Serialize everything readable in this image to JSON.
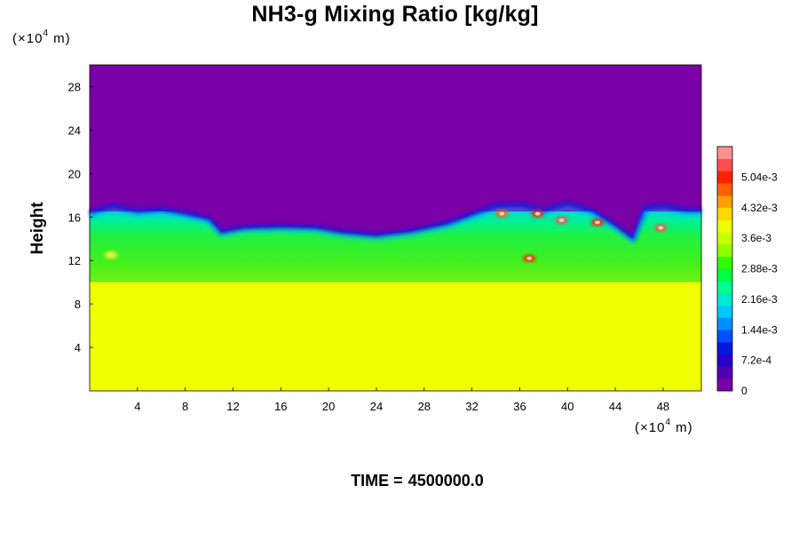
{
  "chart_data": {
    "type": "heatmap",
    "title": "NH3-g Mixing Ratio [kg/kg]",
    "ylabel": "Height",
    "x_unit_label": "(×10",
    "x_unit_exp": "4",
    "x_unit_suffix": " m)",
    "y_unit_label": "(×10",
    "y_unit_exp": "4",
    "y_unit_suffix": " m)",
    "xlim": [
      0,
      51.2
    ],
    "ylim": [
      0,
      30
    ],
    "x_ticks": [
      "4",
      "8",
      "12",
      "16",
      "20",
      "24",
      "28",
      "32",
      "36",
      "40",
      "44",
      "48"
    ],
    "y_ticks": [
      "4",
      "8",
      "12",
      "16",
      "20",
      "24",
      "28"
    ],
    "colorbar": {
      "min": 0,
      "max": 0.00576,
      "tick_labels": [
        "0",
        "7.2e-4",
        "1.44e-3",
        "2.16e-3",
        "2.88e-3",
        "3.6e-3",
        "4.32e-3",
        "5.04e-3"
      ],
      "tick_values": [
        0,
        0.00072,
        0.00144,
        0.00216,
        0.00288,
        0.0036,
        0.00432,
        0.00504
      ],
      "colors": [
        "#7a00a8",
        "#5000b0",
        "#2a00c8",
        "#0018e0",
        "#0050ff",
        "#0090ff",
        "#00c8ff",
        "#00e8d0",
        "#00ff90",
        "#00ff40",
        "#30ff00",
        "#90ff00",
        "#c8ff00",
        "#f0ff00",
        "#ffd800",
        "#ffa000",
        "#ff6000",
        "#ff2000",
        "#ff5050",
        "#ff9090"
      ]
    },
    "regions": [
      {
        "name": "lower layer",
        "y_range": [
          0,
          10
        ],
        "value": 0.00375
      },
      {
        "name": "cloud layer",
        "y_range": [
          10,
          16.5
        ],
        "value": 0.0027
      },
      {
        "name": "upper layer",
        "y_range": [
          16.5,
          30
        ],
        "value": 0
      }
    ],
    "hot_spots": [
      {
        "x": 34.5,
        "y": 16.3,
        "value": 0.0048
      },
      {
        "x": 37.5,
        "y": 16.3,
        "value": 0.0049
      },
      {
        "x": 39.5,
        "y": 15.7,
        "value": 0.0052
      },
      {
        "x": 42.5,
        "y": 15.5,
        "value": 0.0051
      },
      {
        "x": 47.8,
        "y": 15.0,
        "value": 0.0052
      },
      {
        "x": 36.8,
        "y": 12.2,
        "value": 0.005
      },
      {
        "x": 1.8,
        "y": 12.5,
        "value": 0.004
      }
    ],
    "grid": false,
    "legend": "colorbar-right"
  },
  "footer": {
    "time_label": "TIME =",
    "time_value": "4500000.0"
  }
}
